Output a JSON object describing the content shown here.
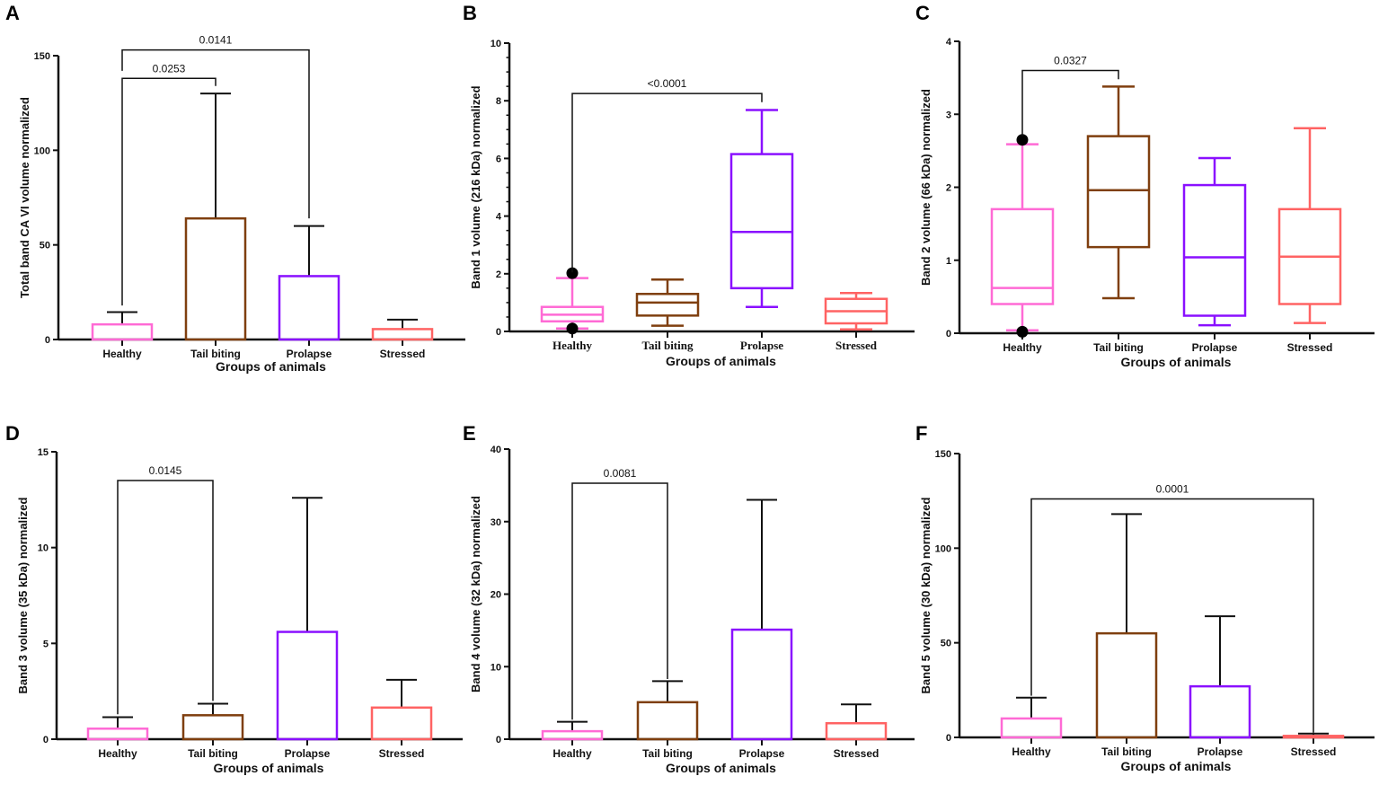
{
  "chart_data": [
    {
      "panel": "A",
      "type": "bar",
      "ylabel": "Total band CA VI volume normalized",
      "xlabel": "Groups of animals",
      "categories": [
        "Healthy",
        "Tail biting",
        "Prolapse",
        "Stressed"
      ],
      "values": [
        8,
        64,
        33.5,
        5.5
      ],
      "error_upper": [
        14.5,
        130,
        60,
        10.5
      ],
      "ylim": [
        0,
        150
      ],
      "yticks": [
        0,
        50,
        100,
        150
      ],
      "minor_ticks": false,
      "brackets": [
        {
          "from": 0,
          "to": 2,
          "label": "0.0141",
          "y": 153,
          "left_end": 142,
          "right_end": 64
        },
        {
          "from": 0,
          "to": 1,
          "label": "0.0253",
          "y": 138,
          "left_end": 18,
          "right_end": 134
        }
      ]
    },
    {
      "panel": "B",
      "type": "box",
      "ylabel": "Band 1 volume (216 kDa) normalized",
      "xlabel": "Groups of animals",
      "categories": [
        "Healthy",
        "Tail biting",
        "Prolapse",
        "Stressed"
      ],
      "boxes": [
        {
          "min": 0.1,
          "q1": 0.35,
          "median": 0.58,
          "q3": 0.85,
          "max": 1.85,
          "outliers": [
            2.02,
            0.1
          ]
        },
        {
          "min": 0.2,
          "q1": 0.55,
          "median": 1.0,
          "q3": 1.3,
          "max": 1.8,
          "outliers": []
        },
        {
          "min": 0.85,
          "q1": 1.5,
          "median": 3.45,
          "q3": 6.15,
          "max": 7.68,
          "outliers": []
        },
        {
          "min": 0.07,
          "q1": 0.28,
          "median": 0.7,
          "q3": 1.13,
          "max": 1.33,
          "outliers": []
        }
      ],
      "ylim": [
        0,
        10
      ],
      "yticks": [
        0,
        2,
        4,
        6,
        8,
        10
      ],
      "minor_ticks": true,
      "brackets": [
        {
          "from": 0,
          "to": 2,
          "label": "<0.0001",
          "y": 8.25,
          "left_end": 2.05,
          "right_end": 7.95
        }
      ]
    },
    {
      "panel": "C",
      "type": "box",
      "ylabel": "Band 2 volume (66 kDa) normalized",
      "xlabel": "Groups of animals",
      "categories": [
        "Healthy",
        "Tail biting",
        "Prolapse",
        "Stressed"
      ],
      "boxes": [
        {
          "min": 0.04,
          "q1": 0.4,
          "median": 0.62,
          "q3": 1.7,
          "max": 2.59,
          "outliers": [
            2.65,
            0.02
          ]
        },
        {
          "min": 0.48,
          "q1": 1.18,
          "median": 1.96,
          "q3": 2.7,
          "max": 3.38,
          "outliers": []
        },
        {
          "min": 0.11,
          "q1": 0.24,
          "median": 1.04,
          "q3": 2.03,
          "max": 2.4,
          "outliers": []
        },
        {
          "min": 0.14,
          "q1": 0.4,
          "median": 1.05,
          "q3": 1.7,
          "max": 2.81,
          "outliers": []
        }
      ],
      "ylim": [
        0,
        4
      ],
      "yticks": [
        0,
        1,
        2,
        3,
        4
      ],
      "minor_ticks": false,
      "brackets": [
        {
          "from": 0,
          "to": 1,
          "label": "0.0327",
          "y": 3.6,
          "left_end": 2.7,
          "right_end": 3.48
        }
      ]
    },
    {
      "panel": "D",
      "type": "bar",
      "ylabel": "Band 3 volume (35 kDa) normalized",
      "xlabel": "Groups of animals",
      "categories": [
        "Healthy",
        "Tail biting",
        "Prolapse",
        "Stressed"
      ],
      "values": [
        0.55,
        1.25,
        5.6,
        1.65
      ],
      "error_upper": [
        1.15,
        1.85,
        12.6,
        3.1
      ],
      "ylim": [
        0,
        15
      ],
      "yticks": [
        0,
        5,
        10,
        15
      ],
      "minor_ticks": false,
      "brackets": [
        {
          "from": 0,
          "to": 1,
          "label": "0.0145",
          "y": 13.5,
          "left_end": 1.3,
          "right_end": 2.0
        }
      ]
    },
    {
      "panel": "E",
      "type": "bar",
      "ylabel": "Band 4 volume (32 kDa) normalized",
      "xlabel": "Groups of animals",
      "categories": [
        "Healthy",
        "Tail biting",
        "Prolapse",
        "Stressed"
      ],
      "values": [
        1.1,
        5.1,
        15.1,
        2.2
      ],
      "error_upper": [
        2.4,
        8.0,
        33,
        4.8
      ],
      "ylim": [
        0,
        40
      ],
      "yticks": [
        0,
        10,
        20,
        30,
        40
      ],
      "minor_ticks": false,
      "brackets": [
        {
          "from": 0,
          "to": 1,
          "label": "0.0081",
          "y": 35.3,
          "left_end": 2.7,
          "right_end": 8.3
        }
      ]
    },
    {
      "panel": "F",
      "type": "bar",
      "ylabel": "Band 5 volume (30 kDa) normalized",
      "xlabel": "Groups of animals",
      "categories": [
        "Healthy",
        "Tail biting",
        "Prolapse",
        "Stressed"
      ],
      "values": [
        10,
        55,
        27,
        0.8
      ],
      "error_upper": [
        21,
        118,
        64,
        2
      ],
      "ylim": [
        0,
        150
      ],
      "yticks": [
        0,
        50,
        100,
        150
      ],
      "minor_ticks": false,
      "brackets": [
        {
          "from": 0,
          "to": 3,
          "label": "0.0001",
          "y": 126,
          "left_end": 22,
          "right_end": 2.5
        }
      ]
    }
  ],
  "colors": {
    "Healthy": "#ff6ad5",
    "Tail biting": "#7f3f0f",
    "Prolapse": "#8a10ff",
    "Stressed": "#ff6363",
    "axis": "#111111",
    "outlier": "#000000"
  }
}
